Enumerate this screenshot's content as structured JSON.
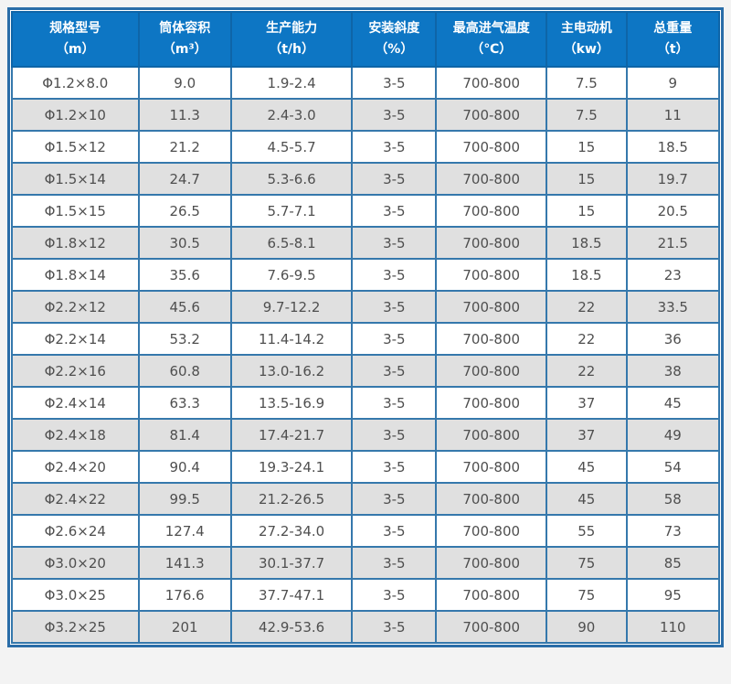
{
  "colors": {
    "page_background": "#f3f3f3",
    "frame_border": "#2a6da8",
    "grid_line": "#3578ac",
    "header_background": "#0d76c4",
    "header_border": "#0e65a8",
    "header_text": "#ffffff",
    "row_odd": "#ffffff",
    "row_even": "#e0e0e0",
    "cell_text": "#4f4f4f"
  },
  "table": {
    "columns": [
      {
        "key": "spec-model",
        "label": "规格型号",
        "unit": "（m）"
      },
      {
        "key": "volume",
        "label": "筒体容积",
        "unit": "（m³）"
      },
      {
        "key": "capacity",
        "label": "生产能力",
        "unit": "（t/h）"
      },
      {
        "key": "slope",
        "label": "安装斜度",
        "unit": "（%）"
      },
      {
        "key": "inlet-temp",
        "label": "最高进气温度",
        "unit": "（℃）"
      },
      {
        "key": "main-motor",
        "label": "主电动机",
        "unit": "（kw）"
      },
      {
        "key": "total-weight",
        "label": "总重量",
        "unit": "（t）"
      }
    ],
    "rows": [
      [
        "Φ1.2×8.0",
        "9.0",
        "1.9-2.4",
        "3-5",
        "700-800",
        "7.5",
        "9"
      ],
      [
        "Φ1.2×10",
        "11.3",
        "2.4-3.0",
        "3-5",
        "700-800",
        "7.5",
        "11"
      ],
      [
        "Φ1.5×12",
        "21.2",
        "4.5-5.7",
        "3-5",
        "700-800",
        "15",
        "18.5"
      ],
      [
        "Φ1.5×14",
        "24.7",
        "5.3-6.6",
        "3-5",
        "700-800",
        "15",
        "19.7"
      ],
      [
        "Φ1.5×15",
        "26.5",
        "5.7-7.1",
        "3-5",
        "700-800",
        "15",
        "20.5"
      ],
      [
        "Φ1.8×12",
        "30.5",
        "6.5-8.1",
        "3-5",
        "700-800",
        "18.5",
        "21.5"
      ],
      [
        "Φ1.8×14",
        "35.6",
        "7.6-9.5",
        "3-5",
        "700-800",
        "18.5",
        "23"
      ],
      [
        "Φ2.2×12",
        "45.6",
        "9.7-12.2",
        "3-5",
        "700-800",
        "22",
        "33.5"
      ],
      [
        "Φ2.2×14",
        "53.2",
        "11.4-14.2",
        "3-5",
        "700-800",
        "22",
        "36"
      ],
      [
        "Φ2.2×16",
        "60.8",
        "13.0-16.2",
        "3-5",
        "700-800",
        "22",
        "38"
      ],
      [
        "Φ2.4×14",
        "63.3",
        "13.5-16.9",
        "3-5",
        "700-800",
        "37",
        "45"
      ],
      [
        "Φ2.4×18",
        "81.4",
        "17.4-21.7",
        "3-5",
        "700-800",
        "37",
        "49"
      ],
      [
        "Φ2.4×20",
        "90.4",
        "19.3-24.1",
        "3-5",
        "700-800",
        "45",
        "54"
      ],
      [
        "Φ2.4×22",
        "99.5",
        "21.2-26.5",
        "3-5",
        "700-800",
        "45",
        "58"
      ],
      [
        "Φ2.6×24",
        "127.4",
        "27.2-34.0",
        "3-5",
        "700-800",
        "55",
        "73"
      ],
      [
        "Φ3.0×20",
        "141.3",
        "30.1-37.7",
        "3-5",
        "700-800",
        "75",
        "85"
      ],
      [
        "Φ3.0×25",
        "176.6",
        "37.7-47.1",
        "3-5",
        "700-800",
        "75",
        "95"
      ],
      [
        "Φ3.2×25",
        "201",
        "42.9-53.6",
        "3-5",
        "700-800",
        "90",
        "110"
      ]
    ]
  },
  "chart_data": {
    "type": "table",
    "title": "",
    "columns": [
      "规格型号（m）",
      "筒体容积（m³）",
      "生产能力（t/h）",
      "安装斜度（%）",
      "最高进气温度（℃）",
      "主电动机（kw）",
      "总重量（t）"
    ],
    "rows": [
      [
        "Φ1.2×8.0",
        "9.0",
        "1.9-2.4",
        "3-5",
        "700-800",
        "7.5",
        "9"
      ],
      [
        "Φ1.2×10",
        "11.3",
        "2.4-3.0",
        "3-5",
        "700-800",
        "7.5",
        "11"
      ],
      [
        "Φ1.5×12",
        "21.2",
        "4.5-5.7",
        "3-5",
        "700-800",
        "15",
        "18.5"
      ],
      [
        "Φ1.5×14",
        "24.7",
        "5.3-6.6",
        "3-5",
        "700-800",
        "15",
        "19.7"
      ],
      [
        "Φ1.5×15",
        "26.5",
        "5.7-7.1",
        "3-5",
        "700-800",
        "15",
        "20.5"
      ],
      [
        "Φ1.8×12",
        "30.5",
        "6.5-8.1",
        "3-5",
        "700-800",
        "18.5",
        "21.5"
      ],
      [
        "Φ1.8×14",
        "35.6",
        "7.6-9.5",
        "3-5",
        "700-800",
        "18.5",
        "23"
      ],
      [
        "Φ2.2×12",
        "45.6",
        "9.7-12.2",
        "3-5",
        "700-800",
        "22",
        "33.5"
      ],
      [
        "Φ2.2×14",
        "53.2",
        "11.4-14.2",
        "3-5",
        "700-800",
        "22",
        "36"
      ],
      [
        "Φ2.2×16",
        "60.8",
        "13.0-16.2",
        "3-5",
        "700-800",
        "22",
        "38"
      ],
      [
        "Φ2.4×14",
        "63.3",
        "13.5-16.9",
        "3-5",
        "700-800",
        "37",
        "45"
      ],
      [
        "Φ2.4×18",
        "81.4",
        "17.4-21.7",
        "3-5",
        "700-800",
        "37",
        "49"
      ],
      [
        "Φ2.4×20",
        "90.4",
        "19.3-24.1",
        "3-5",
        "700-800",
        "45",
        "54"
      ],
      [
        "Φ2.4×22",
        "99.5",
        "21.2-26.5",
        "3-5",
        "700-800",
        "45",
        "58"
      ],
      [
        "Φ2.6×24",
        "127.4",
        "27.2-34.0",
        "3-5",
        "700-800",
        "55",
        "73"
      ],
      [
        "Φ3.0×20",
        "141.3",
        "30.1-37.7",
        "3-5",
        "700-800",
        "75",
        "85"
      ],
      [
        "Φ3.0×25",
        "176.6",
        "37.7-47.1",
        "3-5",
        "700-800",
        "75",
        "95"
      ],
      [
        "Φ3.2×25",
        "201",
        "42.9-53.6",
        "3-5",
        "700-800",
        "90",
        "110"
      ]
    ]
  }
}
